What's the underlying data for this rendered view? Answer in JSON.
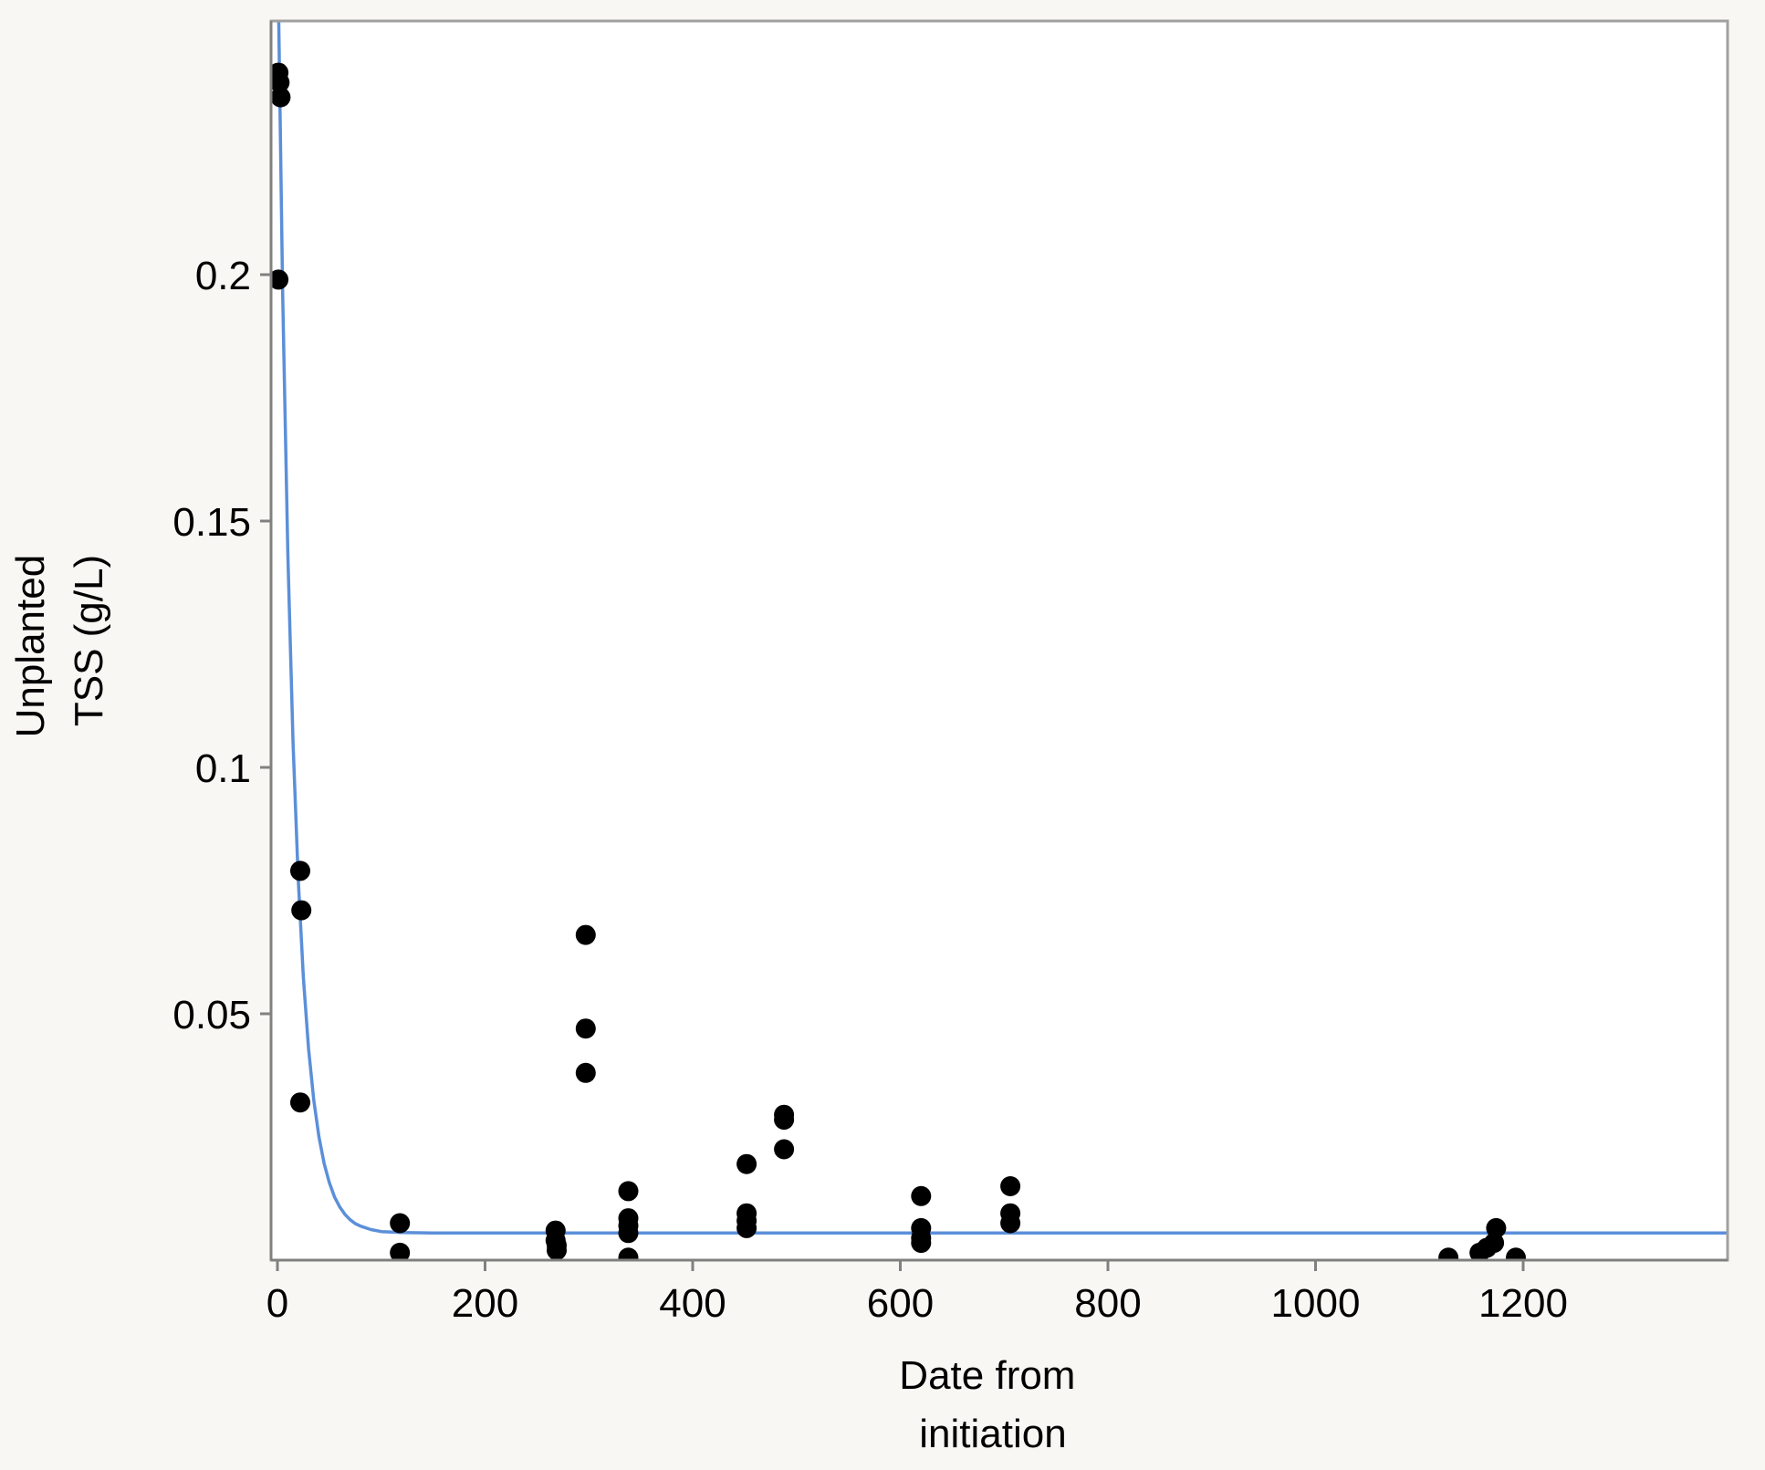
{
  "chart_data": {
    "type": "scatter",
    "title": "",
    "xlabel": [
      "Date from",
      "initiation"
    ],
    "ylabel": [
      "Unplanted",
      "TSS (g/L)"
    ],
    "xlim": [
      -5,
      1400
    ],
    "ylim": [
      0,
      0.25
    ],
    "xticks": [
      0,
      200,
      400,
      600,
      800,
      1000,
      1200
    ],
    "xtick_labels": [
      "0",
      "200",
      "400",
      "600",
      "800",
      "1000",
      "1200"
    ],
    "yticks": [
      0.05,
      0.1,
      0.15,
      0.2
    ],
    "ytick_labels": [
      "0.05",
      "0.1",
      "0.15",
      "0.2"
    ],
    "grid": false,
    "legend": false,
    "colors": {
      "points": "#000000",
      "fit_line": "#5b8fd9",
      "frame": "#a0a0a0",
      "plot_bg": "#ffffff",
      "page_bg": "#f8f7f4"
    },
    "series": [
      {
        "type": "scatter",
        "x": [
          1,
          2,
          3,
          1,
          22,
          23,
          22,
          118,
          118,
          268,
          268,
          269,
          269,
          297,
          297,
          297,
          338,
          338,
          338,
          338,
          338,
          452,
          452,
          452,
          452,
          488,
          488,
          488,
          620,
          620,
          620,
          620,
          706,
          706,
          706,
          1128,
          1158,
          1165,
          1172,
          1174,
          1193
        ],
        "y": [
          0.241,
          0.239,
          0.236,
          0.199,
          0.079,
          0.071,
          0.032,
          0.0075,
          0.0015,
          0.006,
          0.004,
          0.003,
          0.002,
          0.066,
          0.047,
          0.038,
          0.014,
          0.0085,
          0.007,
          0.0055,
          0.0005,
          0.0195,
          0.0095,
          0.008,
          0.0065,
          0.0295,
          0.0285,
          0.0225,
          0.013,
          0.0065,
          0.0045,
          0.0035,
          0.015,
          0.0095,
          0.0075,
          0.0005,
          0.0015,
          0.0025,
          0.0035,
          0.0065,
          0.0005
        ]
      },
      {
        "type": "line",
        "fit": "exponential decay",
        "x": [
          0,
          5,
          10,
          15,
          20,
          25,
          30,
          35,
          40,
          45,
          50,
          55,
          60,
          65,
          70,
          75,
          80,
          90,
          100,
          120,
          150,
          200,
          300,
          400,
          600,
          800,
          1000,
          1200,
          1400
        ],
        "y": [
          0.27,
          0.1964,
          0.1433,
          0.105,
          0.0773,
          0.0574,
          0.0429,
          0.0325,
          0.025,
          0.0196,
          0.0157,
          0.0128,
          0.0108,
          0.0093,
          0.0082,
          0.0074,
          0.0069,
          0.0062,
          0.0058,
          0.0056,
          0.0055,
          0.0055,
          0.0055,
          0.0055,
          0.0055,
          0.0055,
          0.0055,
          0.0055,
          0.0055
        ]
      }
    ]
  }
}
